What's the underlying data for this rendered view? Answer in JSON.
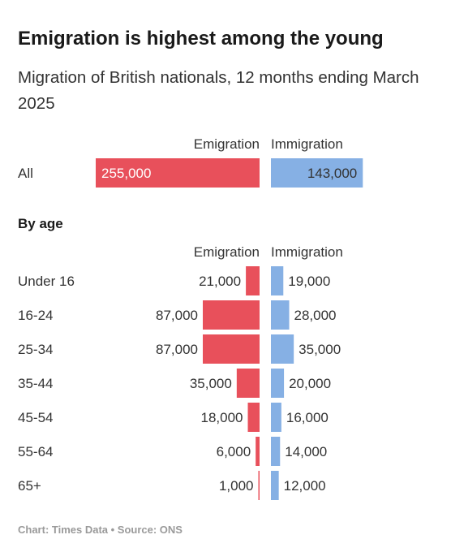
{
  "title": "Emigration is highest among the young",
  "subtitle": "Migration of British nationals, 12 months ending March 2025",
  "footer": "Chart: Times Data • Source: ONS",
  "colors": {
    "emigration": "#e8505b",
    "immigration": "#86b0e4"
  },
  "chart_data": [
    {
      "type": "bar",
      "orientation": "horizontal-diverging",
      "title": "",
      "categories": [
        "All"
      ],
      "series": [
        {
          "name": "Emigration",
          "values": [
            255000
          ],
          "labels": [
            "255,000"
          ]
        },
        {
          "name": "Immigration",
          "values": [
            143000
          ],
          "labels": [
            "143,000"
          ]
        }
      ],
      "legend": "top"
    },
    {
      "type": "bar",
      "orientation": "horizontal-diverging",
      "title": "By age",
      "categories": [
        "Under 16",
        "16-24",
        "25-34",
        "35-44",
        "45-54",
        "55-64",
        "65+"
      ],
      "series": [
        {
          "name": "Emigration",
          "values": [
            21000,
            87000,
            87000,
            35000,
            18000,
            6000,
            1000
          ],
          "labels": [
            "21,000",
            "87,000",
            "87,000",
            "35,000",
            "18,000",
            "6,000",
            "1,000"
          ]
        },
        {
          "name": "Immigration",
          "values": [
            19000,
            28000,
            35000,
            20000,
            16000,
            14000,
            12000
          ],
          "labels": [
            "19,000",
            "28,000",
            "35,000",
            "20,000",
            "16,000",
            "14,000",
            "12,000"
          ]
        }
      ],
      "legend": "top"
    }
  ]
}
